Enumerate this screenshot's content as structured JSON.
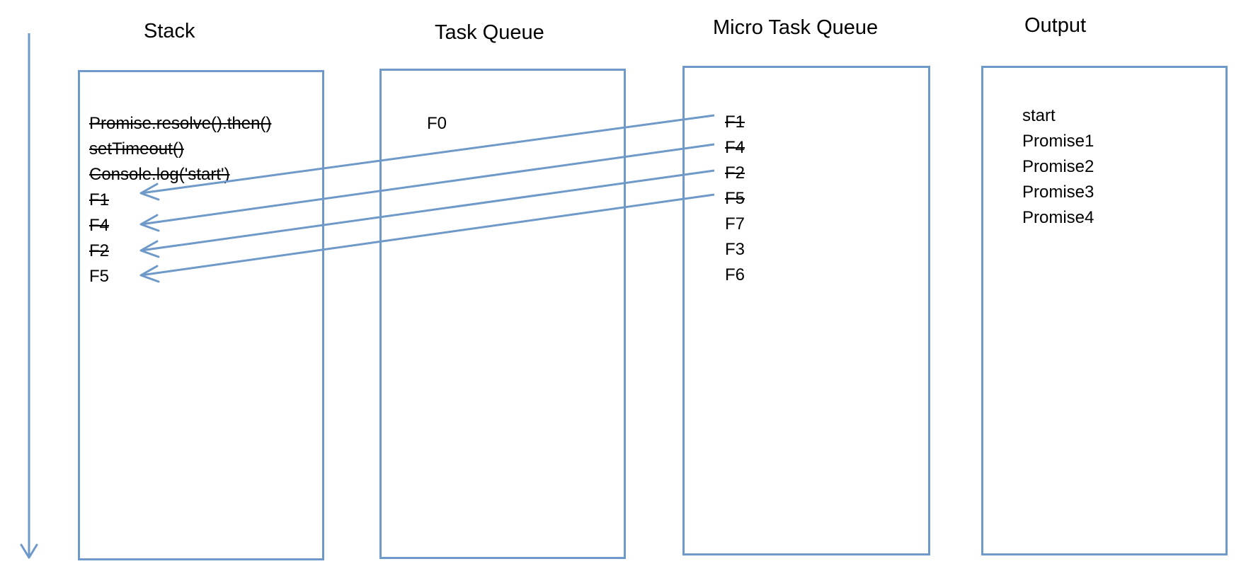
{
  "columns": {
    "stack": {
      "title": "Stack",
      "items": [
        {
          "label": "Promise.resolve().then()",
          "struck": true
        },
        {
          "label": "setTimeout()",
          "struck": true
        },
        {
          "label": "Console.log('start')",
          "struck": true
        },
        {
          "label": "F1",
          "struck": true
        },
        {
          "label": "F4",
          "struck": true
        },
        {
          "label": "F2",
          "struck": true
        },
        {
          "label": "F5",
          "struck": false
        }
      ]
    },
    "task_queue": {
      "title": "Task Queue",
      "items": [
        {
          "label": "F0",
          "struck": false
        }
      ]
    },
    "micro_task_queue": {
      "title": "Micro Task Queue",
      "items": [
        {
          "label": "F1",
          "struck": true
        },
        {
          "label": "F4",
          "struck": true
        },
        {
          "label": "F2",
          "struck": true
        },
        {
          "label": "F5",
          "struck": true
        },
        {
          "label": "F7",
          "struck": false
        },
        {
          "label": "F3",
          "struck": false
        },
        {
          "label": "F6",
          "struck": false
        }
      ]
    },
    "output": {
      "title": "Output",
      "items": [
        {
          "label": "start"
        },
        {
          "label": "Promise1"
        },
        {
          "label": "Promise2"
        },
        {
          "label": "Promise3"
        },
        {
          "label": "Promise4"
        }
      ]
    }
  },
  "arrows": [
    {
      "from": "micro_task_queue.F1",
      "to": "stack.F1"
    },
    {
      "from": "micro_task_queue.F4",
      "to": "stack.F4"
    },
    {
      "from": "micro_task_queue.F2",
      "to": "stack.F2"
    },
    {
      "from": "micro_task_queue.F5",
      "to": "stack.F5"
    }
  ],
  "time_axis": {
    "direction": "down"
  },
  "colors": {
    "line": "#6f99c8",
    "text": "#000000",
    "background": "#ffffff"
  }
}
